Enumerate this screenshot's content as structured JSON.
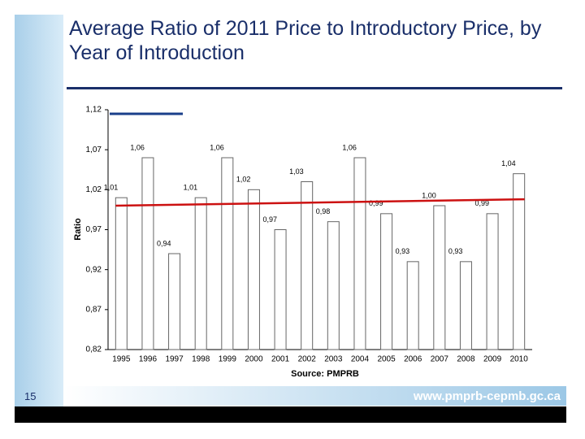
{
  "slide": {
    "title": "Average Ratio of 2011 Price to Introductory Price, by Year of Introduction",
    "page_number": "15",
    "url": "www.pmprb-cepmb.gc.ca"
  },
  "chart_data": {
    "type": "bar",
    "categories": [
      "1995",
      "1996",
      "1997",
      "1998",
      "1999",
      "2000",
      "2001",
      "2002",
      "2003",
      "2004",
      "2005",
      "2006",
      "2007",
      "2008",
      "2009",
      "2010"
    ],
    "values": [
      1.01,
      1.06,
      0.94,
      1.01,
      1.06,
      1.02,
      0.97,
      1.03,
      0.98,
      1.06,
      0.99,
      0.93,
      1.0,
      0.93,
      0.99,
      1.04
    ],
    "value_labels": [
      "1,01",
      "1,06",
      "0,94",
      "1,01",
      "1,06",
      "1,02",
      "0,97",
      "1,03",
      "0,98",
      "1,06",
      "0,99",
      "0,93",
      "1,00",
      "0,93",
      "0,99",
      "1,04"
    ],
    "color": "#ffffff",
    "ylabel": "Ratio",
    "xlabel": "Source: PMPRB",
    "ylim": [
      0.82,
      1.12
    ],
    "yticks": [
      {
        "value": 0.82,
        "label": "0,82"
      },
      {
        "value": 0.87,
        "label": "0,87"
      },
      {
        "value": 0.92,
        "label": "0,92"
      },
      {
        "value": 0.97,
        "label": "0,97"
      },
      {
        "value": 1.02,
        "label": "1,02"
      },
      {
        "value": 1.07,
        "label": "1,07"
      },
      {
        "value": 1.12,
        "label": "1,12"
      }
    ],
    "trend": {
      "color": "#cc1111",
      "values": [
        1.0,
        1.008
      ]
    }
  }
}
